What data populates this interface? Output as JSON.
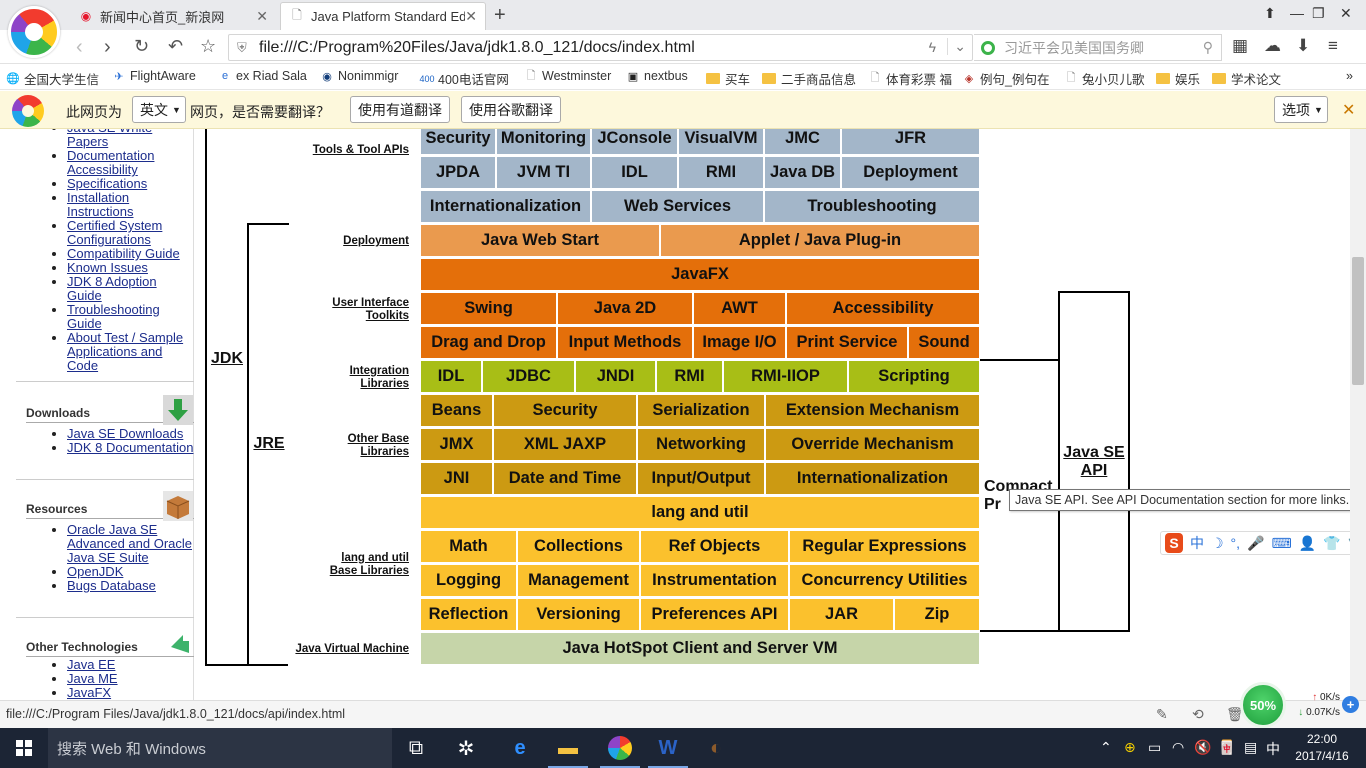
{
  "browser": {
    "tabs": [
      {
        "title": "新闻中心首页_新浪网",
        "icon": "sina-weibo-icon"
      },
      {
        "title": "Java Platform Standard Ed",
        "icon": "page-icon"
      }
    ],
    "url": "file:///C:/Program%20Files/Java/jdk1.8.0_121/docs/index.html",
    "search_placeholder": "习近平会见美国国务卿",
    "bookmarks": [
      "全国大学生信",
      "FlightAware",
      "ex Riad Sala",
      "Nonimmigr",
      "400电话官网",
      "Westminster",
      "nextbus",
      "买车",
      "二手商品信息",
      "体育彩票 福",
      "例句_例句在",
      "兔小贝儿歌",
      "娱乐",
      "学术论文"
    ],
    "more_bookmarks": "»",
    "translate": {
      "prefix": "此网页为",
      "language": "英文",
      "suffix": "网页，是否需要翻译？",
      "youdao": "使用有道翻译",
      "google": "使用谷歌翻译",
      "options": "选项"
    }
  },
  "sidebar": {
    "top_links": [
      "Java SE White Papers",
      "Documentation Accessibility",
      "Specifications",
      "Installation Instructions",
      "Certified System Configurations",
      "Compatibility Guide",
      "Known Issues",
      "JDK 8 Adoption Guide",
      "Troubleshooting Guide",
      "About Test / Sample Applications and Code"
    ],
    "downloads": {
      "heading": "Downloads",
      "links": [
        "Java SE Downloads",
        "JDK 8 Documentation"
      ]
    },
    "resources": {
      "heading": "Resources",
      "links": [
        "Oracle Java SE Advanced and Oracle Java SE Suite",
        "OpenJDK",
        "Bugs Database"
      ]
    },
    "other": {
      "heading": "Other Technologies",
      "links": [
        "Java EE",
        "Java ME",
        "JavaFX"
      ]
    }
  },
  "diagram": {
    "labels": {
      "jdk": "JDK",
      "jre": "JRE",
      "java_se_api": "Java SE API",
      "compact_profiles": "Compact Pr",
      "tools": "Tools & Tool APIs",
      "deployment": "Deployment",
      "ui": "User Interface Toolkits",
      "integration": "Integration Libraries",
      "other_base": "Other Base Libraries",
      "lang_util_base": "lang and util Base Libraries",
      "jvm": "Java Virtual Machine"
    },
    "tools_row1": [
      "Security",
      "Monitoring",
      "JConsole",
      "VisualVM",
      "JMC",
      "JFR"
    ],
    "tools_row2": [
      "JPDA",
      "JVM TI",
      "IDL",
      "RMI",
      "Java DB",
      "Deployment"
    ],
    "tools_row3": [
      "Internationalization",
      "Web Services",
      "Troubleshooting"
    ],
    "deployment_row": [
      "Java Web Start",
      "Applet / Java Plug-in"
    ],
    "javafx": "JavaFX",
    "ui_row1": [
      "Swing",
      "Java 2D",
      "AWT",
      "Accessibility"
    ],
    "ui_row2": [
      "Drag and Drop",
      "Input Methods",
      "Image I/O",
      "Print Service",
      "Sound"
    ],
    "integration_row": [
      "IDL",
      "JDBC",
      "JNDI",
      "RMI",
      "RMI-IIOP",
      "Scripting"
    ],
    "other_row1": [
      "Beans",
      "Security",
      "Serialization",
      "Extension Mechanism"
    ],
    "other_row2": [
      "JMX",
      "XML JAXP",
      "Networking",
      "Override Mechanism"
    ],
    "other_row3": [
      "JNI",
      "Date and Time",
      "Input/Output",
      "Internationalization"
    ],
    "lang_util": "lang and util",
    "lang_row1": [
      "Math",
      "Collections",
      "Ref Objects",
      "Regular Expressions"
    ],
    "lang_row2": [
      "Logging",
      "Management",
      "Instrumentation",
      "Concurrency Utilities"
    ],
    "lang_row3": [
      "Reflection",
      "Versioning",
      "Preferences API",
      "JAR",
      "Zip"
    ],
    "vm": "Java HotSpot Client and Server VM"
  },
  "tooltip": "Java SE API. See API Documentation section for more links.",
  "ime": [
    "中",
    "☽",
    "°,",
    "🎤",
    "⌨",
    "👤",
    "👕",
    "🔧"
  ],
  "status": {
    "url": "file:///C:/Program Files/Java/jdk1.8.0_121/docs/api/index.html"
  },
  "net": {
    "percent": "50%",
    "up": "0K/s",
    "down": "0.07K/s"
  },
  "taskbar": {
    "search": "搜索 Web 和 Windows",
    "ime_lang": "中",
    "time": "22:00",
    "date": "2017/4/16"
  }
}
